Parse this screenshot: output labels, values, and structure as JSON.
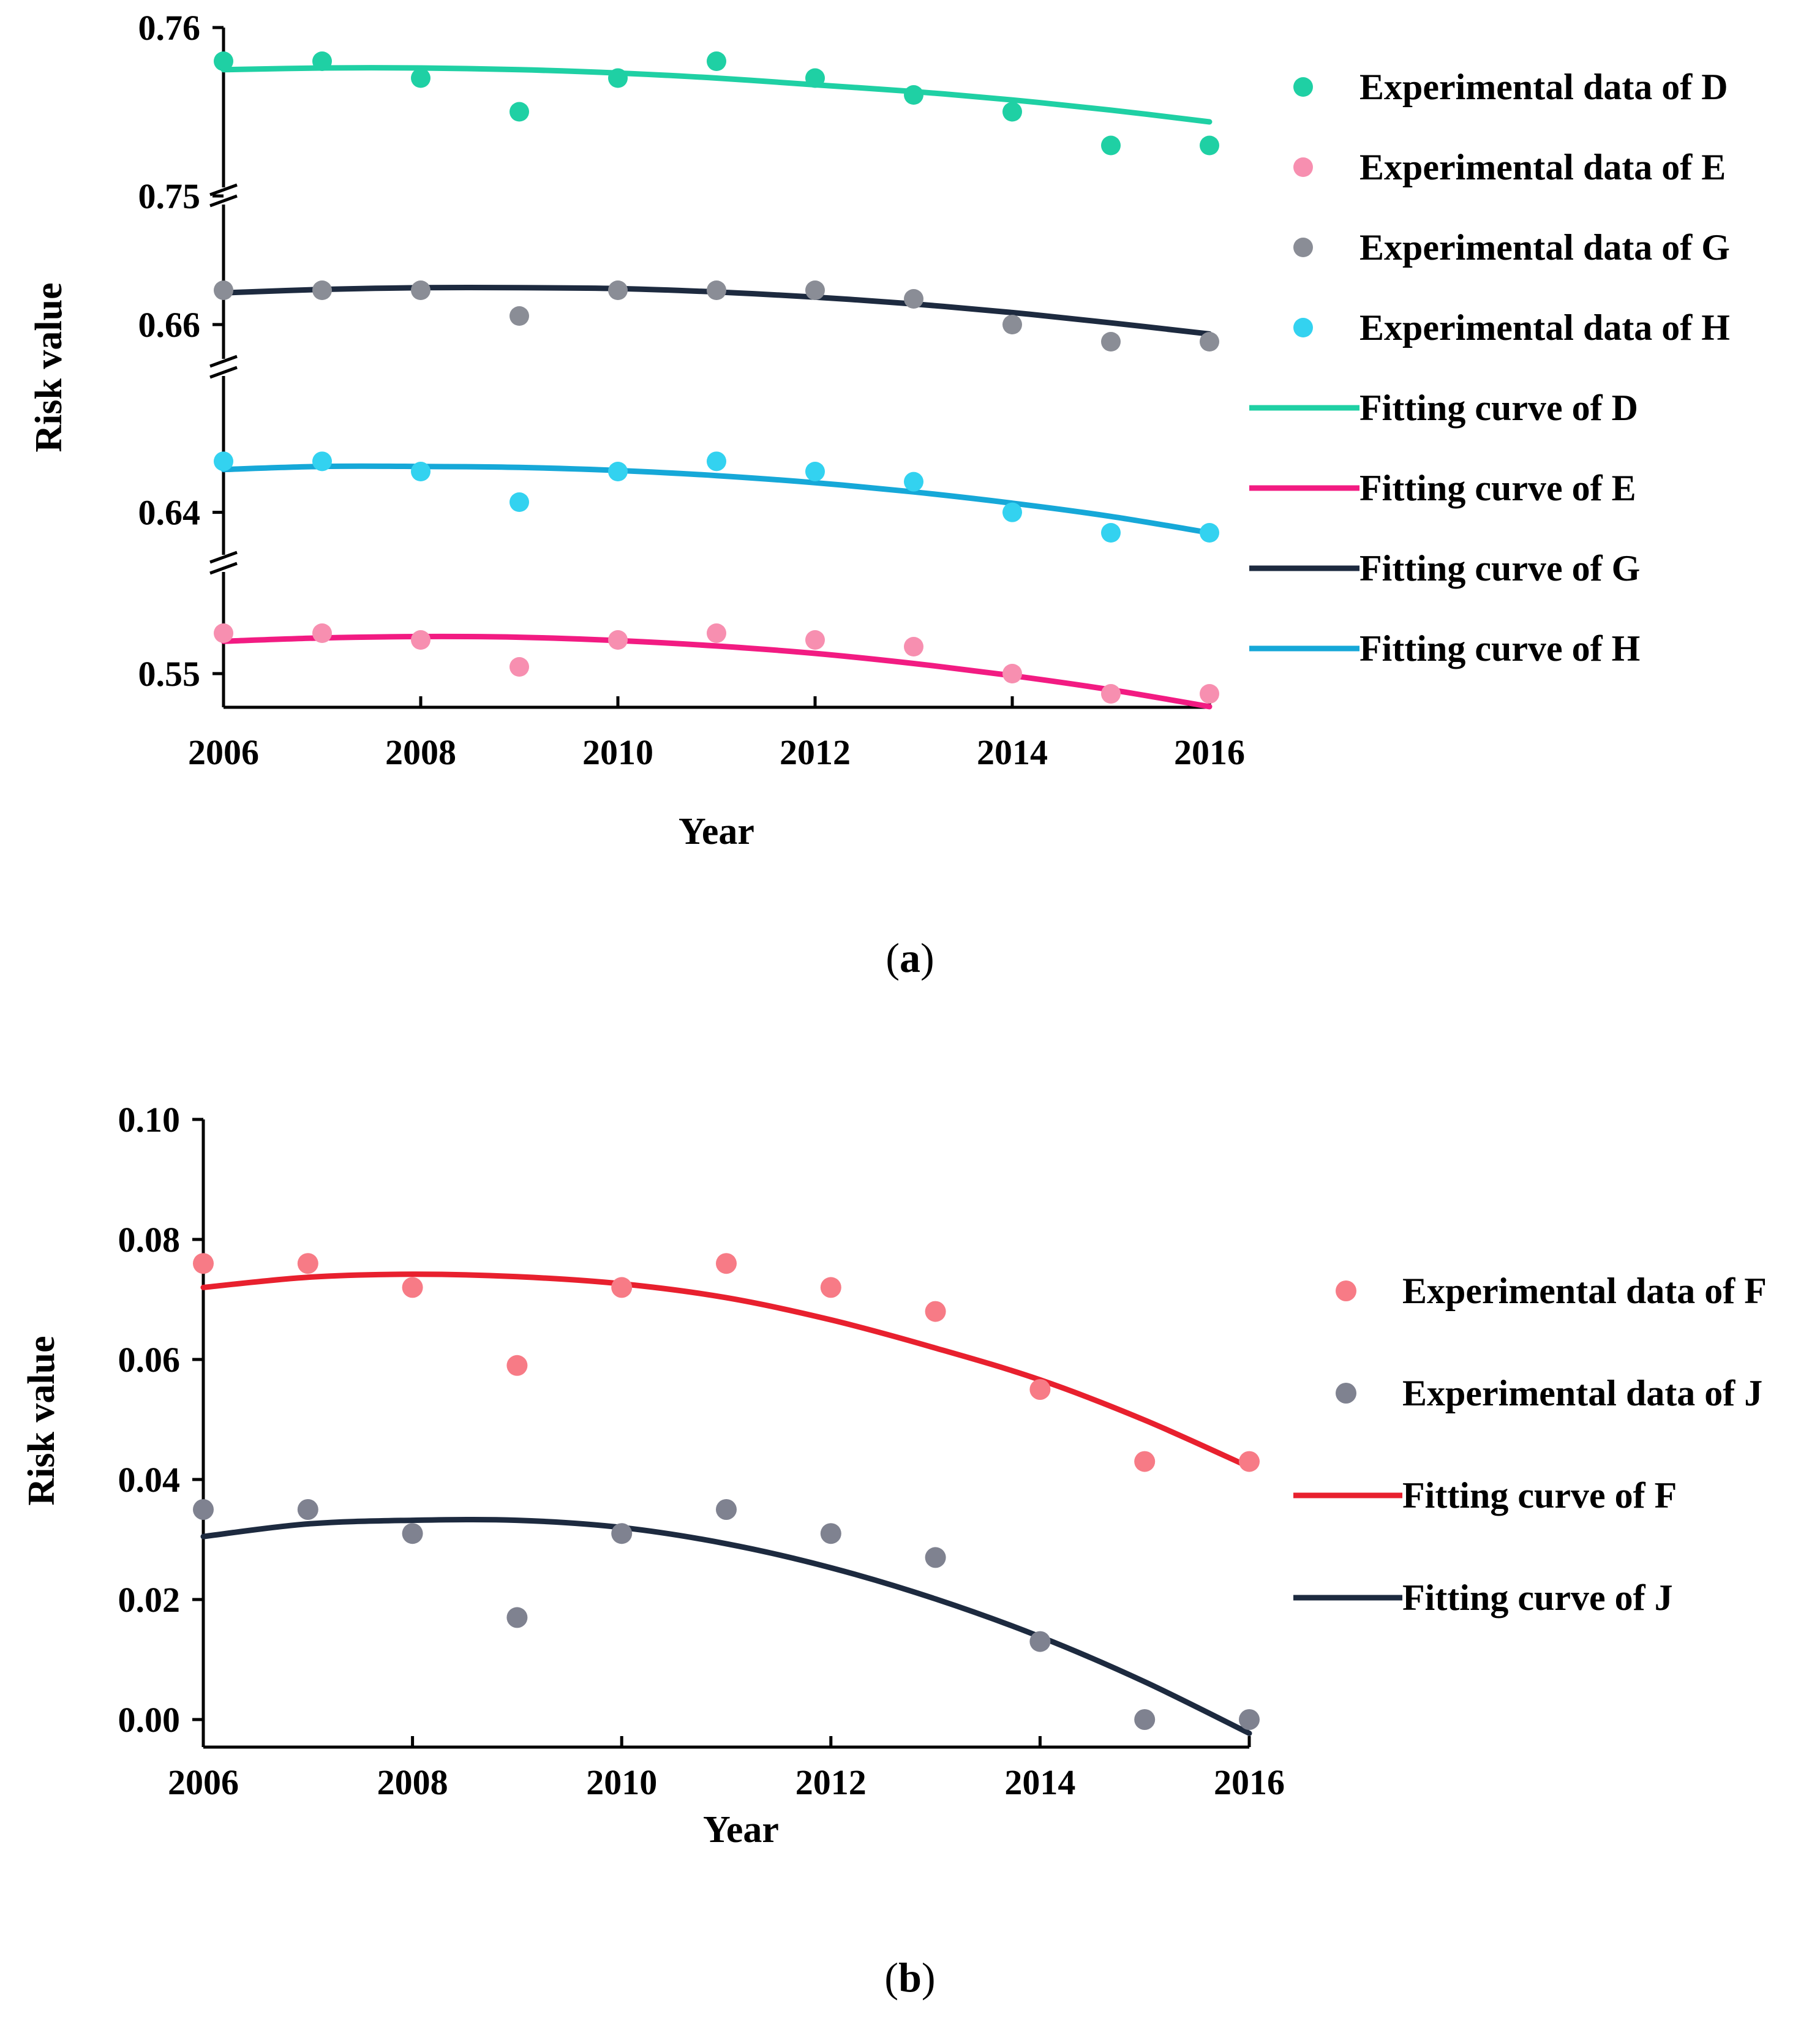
{
  "chart_data": [
    {
      "type": "scatter",
      "panel": "a",
      "caption_letter": "a",
      "xlabel": "Year",
      "ylabel": "Risk value",
      "x_ticks": [
        "2006",
        "2008",
        "2010",
        "2012",
        "2014",
        "2016"
      ],
      "xlim": [
        2006,
        2016
      ],
      "broken_y_axis": true,
      "segments": [
        {
          "series": "D",
          "ylim": [
            0.75,
            0.76
          ],
          "tick_labels": [
            "0.76",
            "0.75"
          ],
          "tick_values": [
            0.76,
            0.75
          ]
        },
        {
          "series": "G",
          "ylim": [
            0.655,
            0.67
          ],
          "tick_labels": [
            "0.66"
          ],
          "tick_values": [
            0.66
          ]
        },
        {
          "series": "H",
          "ylim": [
            0.635,
            0.65
          ],
          "tick_labels": [
            "0.64"
          ],
          "tick_values": [
            0.64
          ]
        },
        {
          "series": "E",
          "ylim": [
            0.545,
            0.56
          ],
          "tick_labels": [
            "0.55"
          ],
          "tick_values": [
            0.55
          ]
        }
      ],
      "series": [
        {
          "name": "D",
          "kind": "points",
          "label": "Experimental data of D",
          "color": "#1fd0a4",
          "x": [
            2006,
            2007,
            2008,
            2009,
            2010,
            2011,
            2012,
            2013,
            2014,
            2015,
            2016
          ],
          "values": [
            0.758,
            0.758,
            0.757,
            0.755,
            0.757,
            0.758,
            0.757,
            0.756,
            0.755,
            0.753,
            0.753
          ]
        },
        {
          "name": "E",
          "kind": "points",
          "label": "Experimental data of E",
          "color": "#f78fb0",
          "x": [
            2006,
            2007,
            2008,
            2009,
            2010,
            2011,
            2012,
            2013,
            2014,
            2015,
            2016
          ],
          "values": [
            0.556,
            0.556,
            0.555,
            0.551,
            0.555,
            0.556,
            0.555,
            0.554,
            0.55,
            0.547,
            0.547
          ]
        },
        {
          "name": "G",
          "kind": "points",
          "label": "Experimental data of G",
          "color": "#8a8d96",
          "x": [
            2006,
            2007,
            2008,
            2009,
            2010,
            2011,
            2012,
            2013,
            2014,
            2015,
            2016
          ],
          "values": [
            0.664,
            0.664,
            0.664,
            0.661,
            0.664,
            0.664,
            0.664,
            0.663,
            0.66,
            0.658,
            0.658
          ]
        },
        {
          "name": "H",
          "kind": "points",
          "label": "Experimental data of H",
          "color": "#33d2f0",
          "x": [
            2006,
            2007,
            2008,
            2009,
            2010,
            2011,
            2012,
            2013,
            2014,
            2015,
            2016
          ],
          "values": [
            0.645,
            0.645,
            0.644,
            0.641,
            0.644,
            0.645,
            0.644,
            0.643,
            0.64,
            0.638,
            0.638
          ]
        },
        {
          "name": "D",
          "kind": "curve",
          "label": "Fitting curve of D",
          "color": "#1fd0a4",
          "x": [
            2006,
            2007,
            2008,
            2009,
            2010,
            2011,
            2012,
            2013,
            2014,
            2015,
            2016
          ],
          "values": [
            0.7575,
            0.7576,
            0.7576,
            0.7575,
            0.7573,
            0.757,
            0.7566,
            0.7562,
            0.7557,
            0.7551,
            0.7544
          ]
        },
        {
          "name": "E",
          "kind": "curve",
          "label": "Fitting curve of E",
          "color": "#f21b82",
          "x": [
            2006,
            2007,
            2008,
            2009,
            2010,
            2011,
            2012,
            2013,
            2014,
            2015,
            2016
          ],
          "values": [
            0.5548,
            0.5553,
            0.5555,
            0.5554,
            0.5549,
            0.5541,
            0.553,
            0.5515,
            0.5497,
            0.5476,
            0.5451
          ]
        },
        {
          "name": "G",
          "kind": "curve",
          "label": "Fitting curve of G",
          "color": "#1d2a3f",
          "x": [
            2006,
            2007,
            2008,
            2009,
            2010,
            2011,
            2012,
            2013,
            2014,
            2015,
            2016
          ],
          "values": [
            0.6637,
            0.6641,
            0.6643,
            0.6643,
            0.6642,
            0.6638,
            0.6632,
            0.6624,
            0.6614,
            0.6602,
            0.6589
          ]
        },
        {
          "name": "H",
          "kind": "curve",
          "label": "Fitting curve of H",
          "color": "#16a8d8",
          "x": [
            2006,
            2007,
            2008,
            2009,
            2010,
            2011,
            2012,
            2013,
            2014,
            2015,
            2016
          ],
          "values": [
            0.6442,
            0.6445,
            0.6445,
            0.6444,
            0.6441,
            0.6436,
            0.6429,
            0.642,
            0.6409,
            0.6396,
            0.638
          ]
        }
      ],
      "legend_position": "right",
      "legend_order": [
        0,
        1,
        2,
        3,
        4,
        5,
        6,
        7
      ]
    },
    {
      "type": "scatter",
      "panel": "b",
      "caption_letter": "b",
      "xlabel": "Year",
      "ylabel": "Risk value",
      "x_ticks": [
        "2006",
        "2008",
        "2010",
        "2012",
        "2014",
        "2016"
      ],
      "xlim": [
        2006,
        2016
      ],
      "ylim": [
        0,
        0.1
      ],
      "y_ticks": [
        "0.00",
        "0.02",
        "0.04",
        "0.06",
        "0.08",
        "0.10"
      ],
      "y_tick_values": [
        0,
        0.02,
        0.04,
        0.06,
        0.08,
        0.1
      ],
      "series": [
        {
          "name": "F",
          "kind": "points",
          "label": "Experimental data of F",
          "color": "#f77b86",
          "x": [
            2006,
            2007,
            2008,
            2009,
            2010,
            2011,
            2012,
            2013,
            2014,
            2015,
            2016
          ],
          "values": [
            0.076,
            0.076,
            0.072,
            0.059,
            0.072,
            0.076,
            0.072,
            0.068,
            0.055,
            0.043,
            0.043
          ]
        },
        {
          "name": "J",
          "kind": "points",
          "label": "Experimental data of J",
          "color": "#7f8290",
          "x": [
            2006,
            2007,
            2008,
            2009,
            2010,
            2011,
            2012,
            2013,
            2014,
            2015,
            2016
          ],
          "values": [
            0.035,
            0.035,
            0.031,
            0.017,
            0.031,
            0.035,
            0.031,
            0.027,
            0.013,
            0.0,
            0.0
          ]
        },
        {
          "name": "F",
          "kind": "curve",
          "label": "Fitting curve of F",
          "color": "#e8202e",
          "x": [
            2006,
            2007,
            2008,
            2009,
            2010,
            2011,
            2012,
            2013,
            2014,
            2015,
            2016
          ],
          "values": [
            0.072,
            0.0737,
            0.0742,
            0.0738,
            0.0726,
            0.0703,
            0.0666,
            0.0619,
            0.0566,
            0.0499,
            0.0421
          ]
        },
        {
          "name": "J",
          "kind": "curve",
          "label": "Fitting curve of J",
          "color": "#1d2a3f",
          "x": [
            2006,
            2007,
            2008,
            2009,
            2010,
            2011,
            2012,
            2013,
            2014,
            2015,
            2016
          ],
          "values": [
            0.0305,
            0.0326,
            0.0332,
            0.0332,
            0.032,
            0.0293,
            0.0253,
            0.0201,
            0.0138,
            0.0063,
            -0.0023
          ]
        }
      ],
      "legend_position": "right",
      "legend_order": [
        0,
        1,
        2,
        3
      ]
    }
  ]
}
